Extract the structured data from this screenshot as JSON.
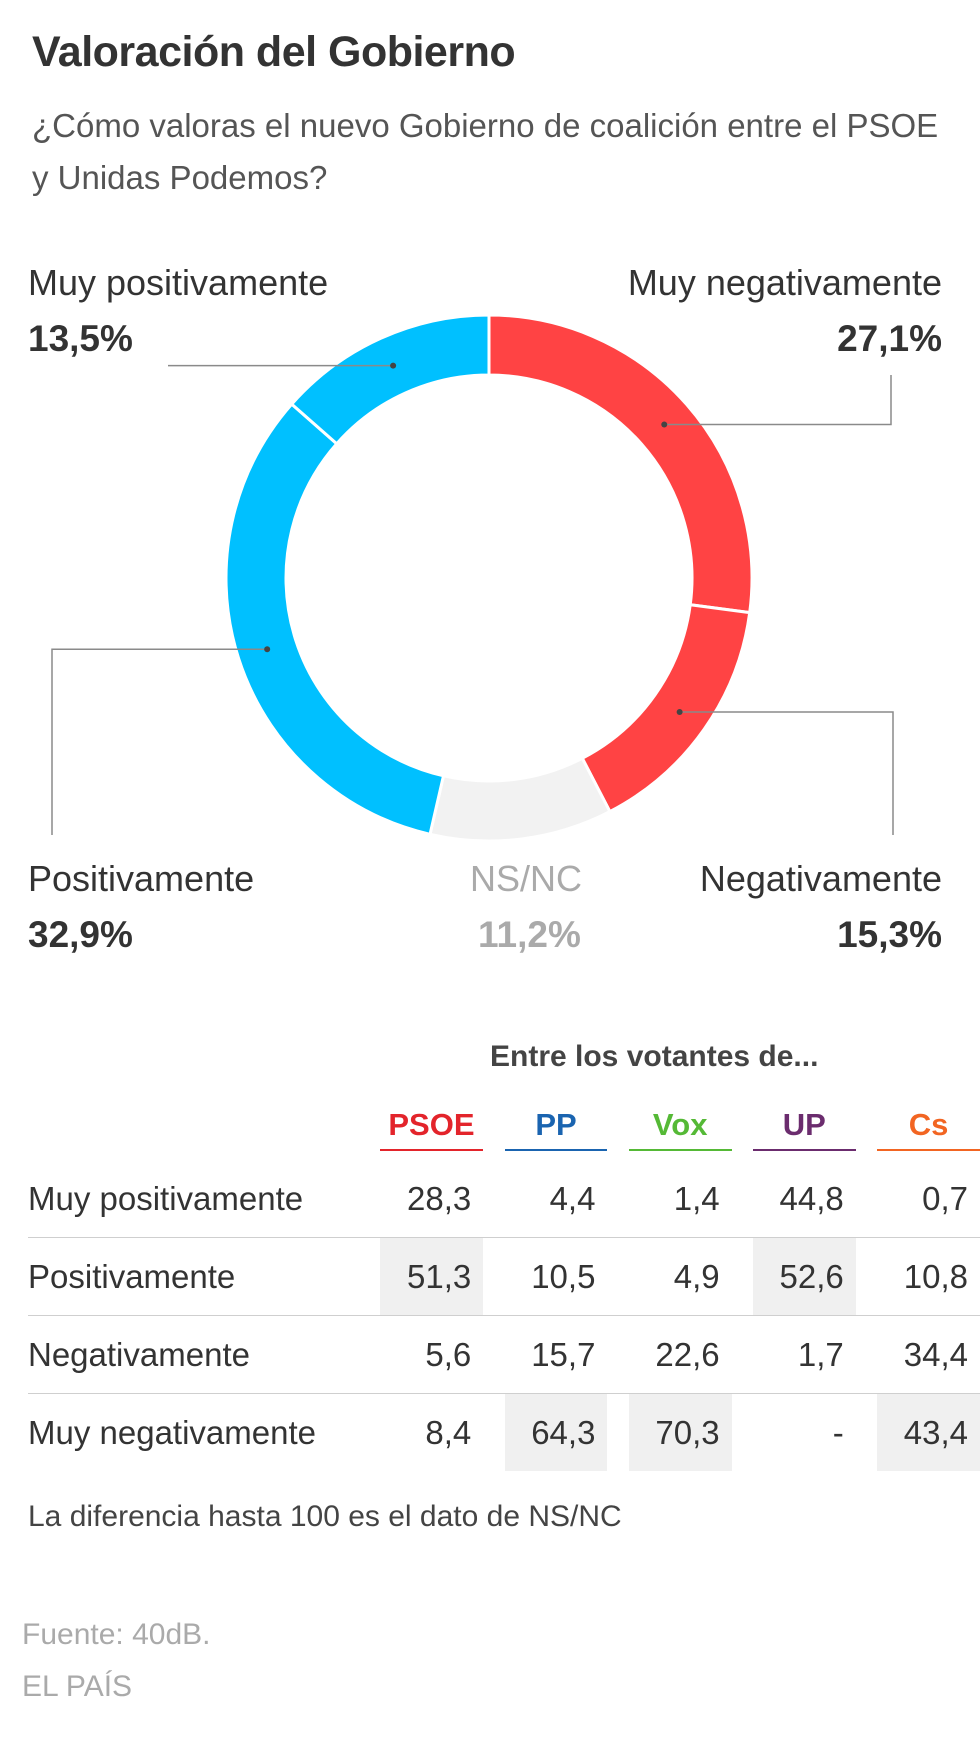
{
  "title": "Valoración del Gobierno",
  "subtitle": "¿Cómo valoras el nuevo Gobierno de coalición entre el PSOE y Unidas Podemos?",
  "chart_data": {
    "type": "pie",
    "variant": "donut",
    "slices": [
      {
        "label": "Muy negativamente",
        "value": 27.1,
        "display": "27,1%",
        "color": "#ff4344"
      },
      {
        "label": "Negativamente",
        "value": 15.3,
        "display": "15,3%",
        "color": "#ff4344"
      },
      {
        "label": "NS/NC",
        "value": 11.2,
        "display": "11,2%",
        "color": "#f2f2f2"
      },
      {
        "label": "Positivamente",
        "value": 32.9,
        "display": "32,9%",
        "color": "#00c0ff"
      },
      {
        "label": "Muy positivamente",
        "value": 13.5,
        "display": "13,5%",
        "color": "#00c0ff"
      }
    ]
  },
  "table": {
    "heading": "Entre los votantes de...",
    "parties": [
      {
        "name": "PSOE",
        "color": "#e3242b"
      },
      {
        "name": "PP",
        "color": "#1a64b0"
      },
      {
        "name": "Vox",
        "color": "#55b936"
      },
      {
        "name": "UP",
        "color": "#6b2c6e"
      },
      {
        "name": "Cs",
        "color": "#f26522"
      }
    ],
    "rows": [
      {
        "label": "Muy positivamente",
        "values": [
          "28,3",
          "4,4",
          "1,4",
          "44,8",
          "0,7"
        ],
        "highlight": [
          false,
          false,
          false,
          false,
          false
        ]
      },
      {
        "label": "Positivamente",
        "values": [
          "51,3",
          "10,5",
          "4,9",
          "52,6",
          "10,8"
        ],
        "highlight": [
          true,
          false,
          false,
          true,
          false
        ]
      },
      {
        "label": "Negativamente",
        "values": [
          "5,6",
          "15,7",
          "22,6",
          "1,7",
          "34,4"
        ],
        "highlight": [
          false,
          false,
          false,
          false,
          false
        ]
      },
      {
        "label": "Muy negativamente",
        "values": [
          "8,4",
          "64,3",
          "70,3",
          "-",
          "43,4"
        ],
        "highlight": [
          false,
          true,
          true,
          false,
          true
        ]
      }
    ]
  },
  "note": "La diferencia hasta 100 es el dato de NS/NC",
  "source": "Fuente: 40dB.",
  "brand": "EL PAÍS"
}
